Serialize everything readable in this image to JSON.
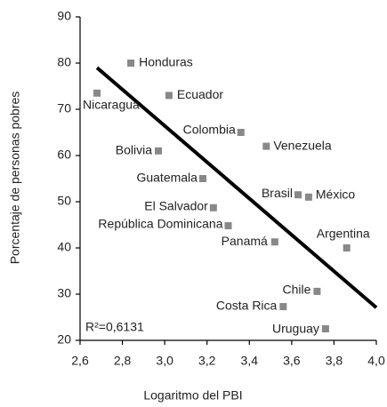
{
  "chart_data": {
    "type": "scatter",
    "x_label": "Logaritmo del PBI",
    "y_label": "Porcentaje de personas pobres",
    "annotation": "R²=0,6131",
    "xlim": [
      2.6,
      4.0
    ],
    "xticks": [
      {
        "value": 2.6,
        "label": "2,6"
      },
      {
        "value": 2.8,
        "label": "2,8"
      },
      {
        "value": 3.0,
        "label": "3,0"
      },
      {
        "value": 3.2,
        "label": "3,2"
      },
      {
        "value": 3.4,
        "label": "3,4"
      },
      {
        "value": 3.6,
        "label": "3,6"
      },
      {
        "value": 3.8,
        "label": "3,8"
      },
      {
        "value": 4.0,
        "label": "4,0"
      }
    ],
    "ylim": [
      20,
      90
    ],
    "yticks": [
      20,
      30,
      40,
      50,
      60,
      70,
      80,
      90
    ],
    "color": "#888888",
    "labels": [
      "Nicaragua",
      "Honduras",
      "Ecuador",
      "Colombia",
      "Venezuela",
      "Bolivia",
      "Guatemala",
      "El Salvador",
      "República Dominicana",
      "Brasil",
      "México",
      "Panamá",
      "Argentina",
      "Chile",
      "Costa Rica",
      "Uruguay"
    ],
    "x": [
      2.68,
      2.84,
      3.02,
      3.36,
      3.48,
      2.97,
      3.18,
      3.23,
      3.3,
      3.63,
      3.68,
      3.52,
      3.86,
      3.72,
      3.56,
      3.76
    ],
    "values": [
      73.5,
      80,
      73,
      65,
      62,
      61,
      55,
      48.7,
      44.8,
      51.5,
      51,
      41.3,
      40,
      30.6,
      27.3,
      22.5
    ],
    "trendline": {
      "color": "#000000",
      "x": [
        2.68,
        4.0
      ],
      "values": [
        79,
        27.1
      ]
    }
  }
}
